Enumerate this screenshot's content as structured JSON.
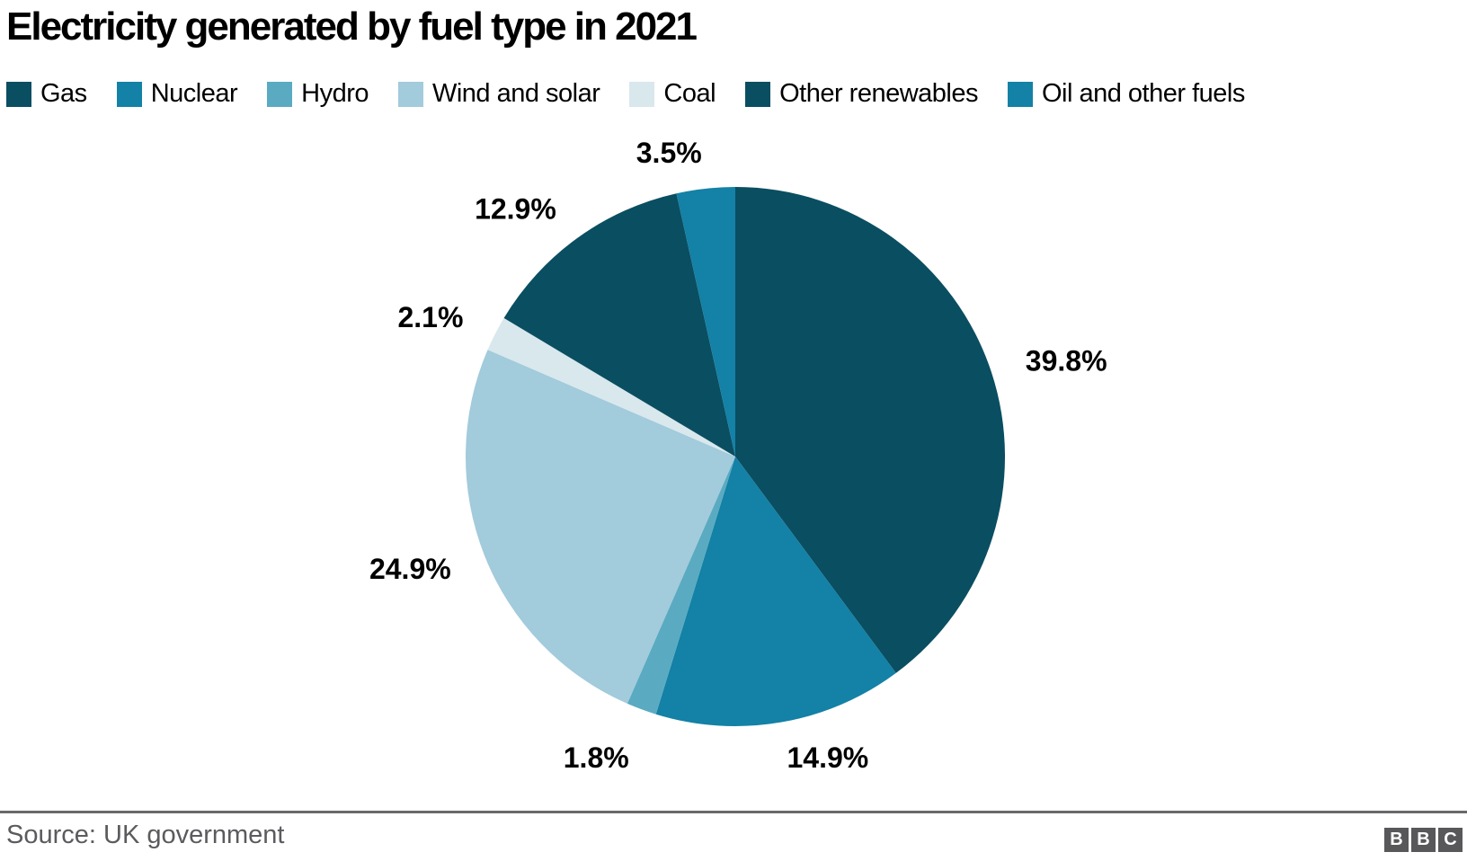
{
  "title": "Electricity generated by fuel type in 2021",
  "chart_data": {
    "type": "pie",
    "title": "Electricity generated by fuel type in 2021",
    "unit": "%",
    "direction": "clockwise",
    "start_angle_deg": 0,
    "legend_position": "top",
    "series": [
      {
        "label": "Gas",
        "value": 39.8,
        "display": "39.8%",
        "color": "#0a4e61"
      },
      {
        "label": "Nuclear",
        "value": 14.9,
        "display": "14.9%",
        "color": "#1481a6"
      },
      {
        "label": "Hydro",
        "value": 1.8,
        "display": "1.8%",
        "color": "#5aabc1"
      },
      {
        "label": "Wind and solar",
        "value": 24.9,
        "display": "24.9%",
        "color": "#a2cbdc"
      },
      {
        "label": "Coal",
        "value": 2.1,
        "display": "2.1%",
        "color": "#d9e8ed"
      },
      {
        "label": "Other renewables",
        "value": 12.9,
        "display": "12.9%",
        "color": "#0a4e61"
      },
      {
        "label": "Oil and other fuels",
        "value": 3.5,
        "display": "3.5%",
        "color": "#1481a6"
      }
    ]
  },
  "footer": {
    "source": "Source: UK government",
    "logo": {
      "letters": [
        "B",
        "B",
        "C"
      ],
      "block_color": "#58585b",
      "letter_color": "#ffffff"
    }
  }
}
